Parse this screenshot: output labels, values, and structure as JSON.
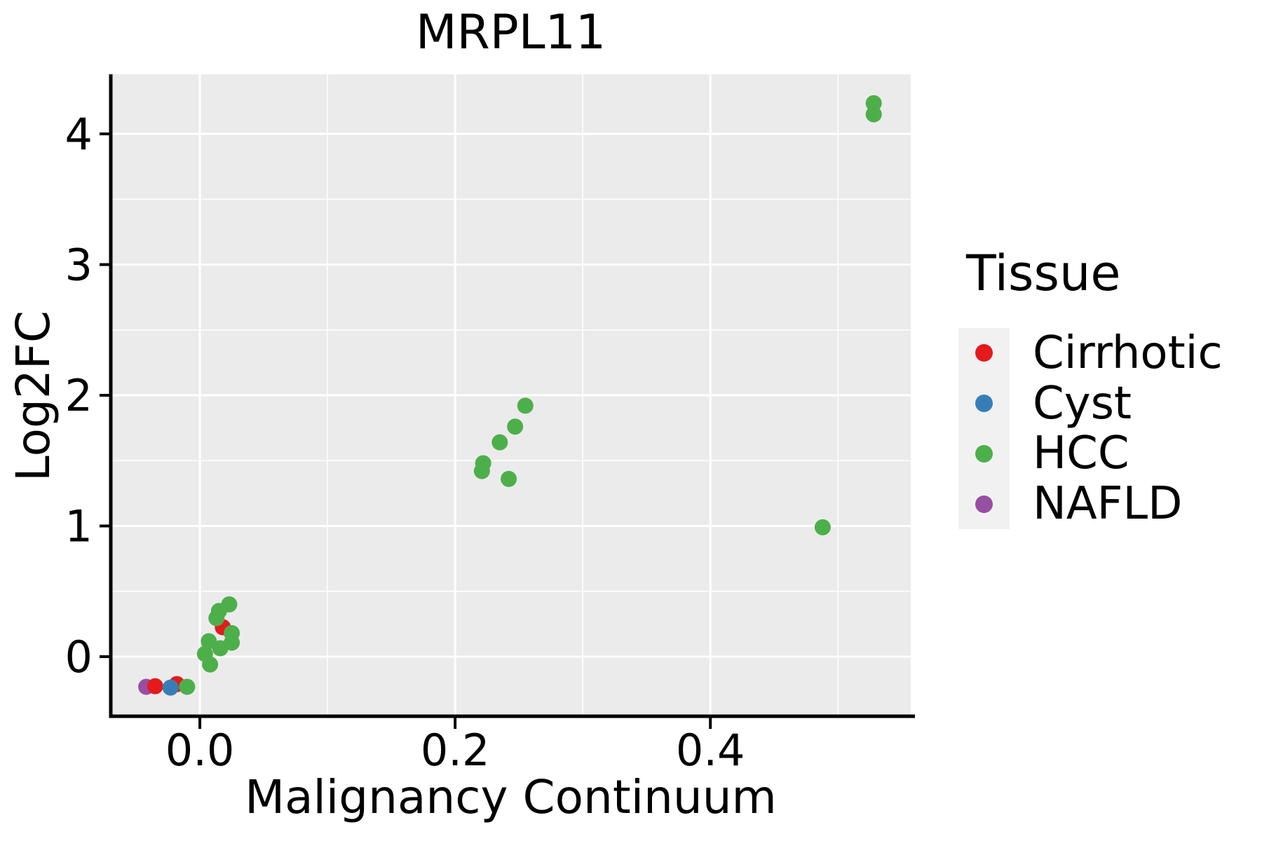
{
  "title": "MRPL11",
  "axes": {
    "x_label": "Malignancy Continuum",
    "y_label": "Log2FC"
  },
  "legend": {
    "title": "Tissue",
    "items": [
      {
        "label": "Cirrhotic",
        "color": "#E41A1C"
      },
      {
        "label": "Cyst",
        "color": "#377EB8"
      },
      {
        "label": "HCC",
        "color": "#4DAF4A"
      },
      {
        "label": "NAFLD",
        "color": "#984EA3"
      }
    ]
  },
  "style": {
    "panel_background": "#EBEBEB",
    "grid_color": "#FFFFFF",
    "axis_color": "#000000",
    "point_radius": 11.5
  },
  "chart_data": {
    "type": "scatter",
    "title": "MRPL11",
    "xlabel": "Malignancy Continuum",
    "ylabel": "Log2FC",
    "xlim": [
      -0.0698,
      0.557
    ],
    "ylim": [
      -0.456,
      4.456
    ],
    "x_ticks": [
      0.0,
      0.2,
      0.4
    ],
    "x_tick_labels": [
      "0.0",
      "0.2",
      "0.4"
    ],
    "y_ticks": [
      0,
      1,
      2,
      3,
      4
    ],
    "y_tick_labels": [
      "0",
      "1",
      "2",
      "3",
      "4"
    ],
    "x_minor_gridlines": [
      0.1,
      0.3,
      0.5
    ],
    "y_minor_gridlines": [
      0.5,
      1.5,
      2.5,
      3.5
    ],
    "grid": true,
    "legend_position": "right",
    "legend_title": "Tissue",
    "groups": [
      "Cirrhotic",
      "Cyst",
      "HCC",
      "NAFLD"
    ],
    "points": [
      {
        "tissue": "NAFLD",
        "x": -0.042,
        "y": -0.231
      },
      {
        "tissue": "Cirrhotic",
        "x": -0.035,
        "y": -0.226
      },
      {
        "tissue": "Cirrhotic",
        "x": -0.018,
        "y": -0.21
      },
      {
        "tissue": "Cyst",
        "x": -0.023,
        "y": -0.237
      },
      {
        "tissue": "HCC",
        "x": -0.01,
        "y": -0.231
      },
      {
        "tissue": "Cirrhotic",
        "x": 0.018,
        "y": 0.225
      },
      {
        "tissue": "HCC",
        "x": 0.023,
        "y": 0.4
      },
      {
        "tissue": "HCC",
        "x": 0.015,
        "y": 0.35
      },
      {
        "tissue": "HCC",
        "x": 0.013,
        "y": 0.295
      },
      {
        "tissue": "HCC",
        "x": 0.025,
        "y": 0.18
      },
      {
        "tissue": "HCC",
        "x": 0.007,
        "y": 0.118
      },
      {
        "tissue": "HCC",
        "x": 0.025,
        "y": 0.107
      },
      {
        "tissue": "HCC",
        "x": 0.016,
        "y": 0.064
      },
      {
        "tissue": "HCC",
        "x": 0.004,
        "y": 0.021
      },
      {
        "tissue": "HCC",
        "x": 0.008,
        "y": -0.06
      },
      {
        "tissue": "HCC",
        "x": 0.222,
        "y": 1.48
      },
      {
        "tissue": "HCC",
        "x": 0.221,
        "y": 1.42
      },
      {
        "tissue": "HCC",
        "x": 0.235,
        "y": 1.64
      },
      {
        "tissue": "HCC",
        "x": 0.242,
        "y": 1.36
      },
      {
        "tissue": "HCC",
        "x": 0.247,
        "y": 1.76
      },
      {
        "tissue": "HCC",
        "x": 0.255,
        "y": 1.92
      },
      {
        "tissue": "HCC",
        "x": 0.488,
        "y": 0.99
      },
      {
        "tissue": "HCC",
        "x": 0.528,
        "y": 4.15
      },
      {
        "tissue": "HCC",
        "x": 0.528,
        "y": 4.235
      }
    ]
  }
}
